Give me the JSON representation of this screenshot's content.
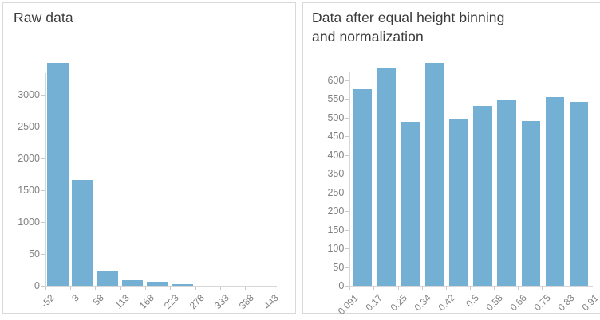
{
  "page": {
    "background": "#ffffff",
    "panel_border_color": "#d9d9d9",
    "bar_color": "#74b0d3",
    "axis_line_color": "#d6d6d6",
    "axis_label_color": "#808080",
    "title_color": "#3a3a3a"
  },
  "chart_data": [
    {
      "type": "bar",
      "title": "Raw data",
      "title_lines": [
        "Raw data"
      ],
      "xlabel": "",
      "ylabel": "",
      "x_tick_labels": [
        "-52",
        "3",
        "58",
        "113",
        "168",
        "223",
        "278",
        "333",
        "388",
        "443"
      ],
      "y_tick_labels": [
        "0",
        "50",
        "1000",
        "1500",
        "2000",
        "2500",
        "3000"
      ],
      "values": [
        3500,
        1660,
        24,
        9,
        6,
        3,
        0,
        0,
        0
      ],
      "legend": "none",
      "grid": "off",
      "notes": "histogram: x tick labels are bin edges; y axis printed exactly as shown (tick between 0 and 1000 reads 50); tallest bar extends above top 3000 tick"
    },
    {
      "type": "bar",
      "title": "Data after equal height binning and normalization",
      "title_lines": [
        "Data after equal height binning",
        "and normalization"
      ],
      "xlabel": "",
      "ylabel": "",
      "x_tick_labels": [
        "0.091",
        "0.17",
        "0.25",
        "0.34",
        "0.42",
        "0.5",
        "0.58",
        "0.66",
        "0.75",
        "0.83",
        "0.91"
      ],
      "y_tick_labels": [
        "0",
        "50",
        "100",
        "150",
        "200",
        "250",
        "350",
        "400",
        "450",
        "500",
        "550",
        "600"
      ],
      "values": [
        575,
        630,
        489,
        645,
        495,
        530,
        545,
        490,
        555,
        542
      ],
      "legend": "none",
      "grid": "off",
      "notes": "histogram: x tick labels are bin edges; y axis printed exactly as shown (300 tick is skipped); tallest bars extend above top 600 tick"
    }
  ]
}
